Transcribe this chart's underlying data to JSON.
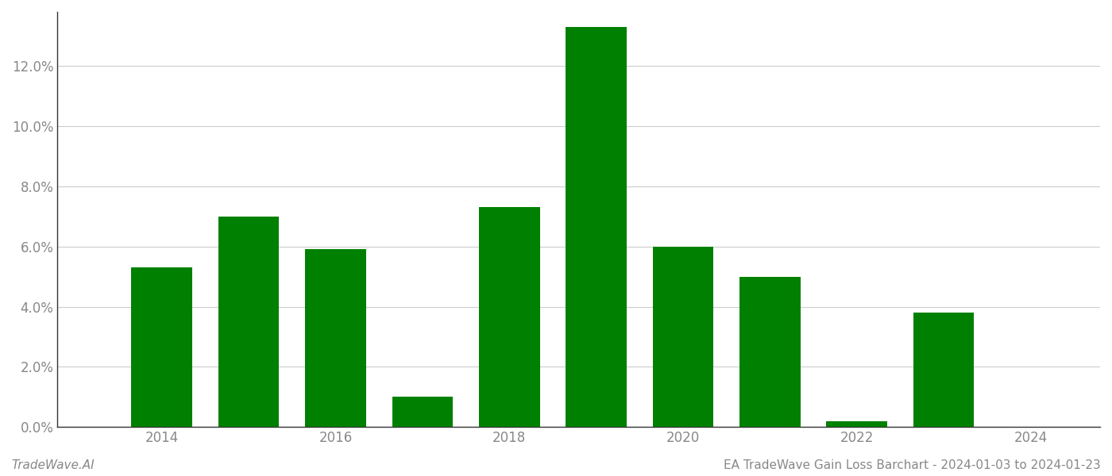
{
  "years": [
    2014,
    2015,
    2016,
    2017,
    2018,
    2019,
    2020,
    2021,
    2022,
    2023
  ],
  "values": [
    0.053,
    0.07,
    0.059,
    0.01,
    0.073,
    0.133,
    0.06,
    0.05,
    0.002,
    0.038
  ],
  "bar_color": "#008000",
  "background_color": "#ffffff",
  "grid_color": "#cccccc",
  "tick_label_color": "#888888",
  "footer_left": "TradeWave.AI",
  "footer_right": "EA TradeWave Gain Loss Barchart - 2024-01-03 to 2024-01-23",
  "footer_color": "#888888",
  "footer_fontsize": 11,
  "ylim": [
    0,
    0.138
  ],
  "ytick_values": [
    0.0,
    0.02,
    0.04,
    0.06,
    0.08,
    0.1,
    0.12
  ],
  "bar_width": 0.7,
  "xlim": [
    2012.8,
    2024.8
  ],
  "xticks": [
    2014,
    2016,
    2018,
    2020,
    2022,
    2024
  ],
  "figsize": [
    14.0,
    6.0
  ],
  "dpi": 100
}
